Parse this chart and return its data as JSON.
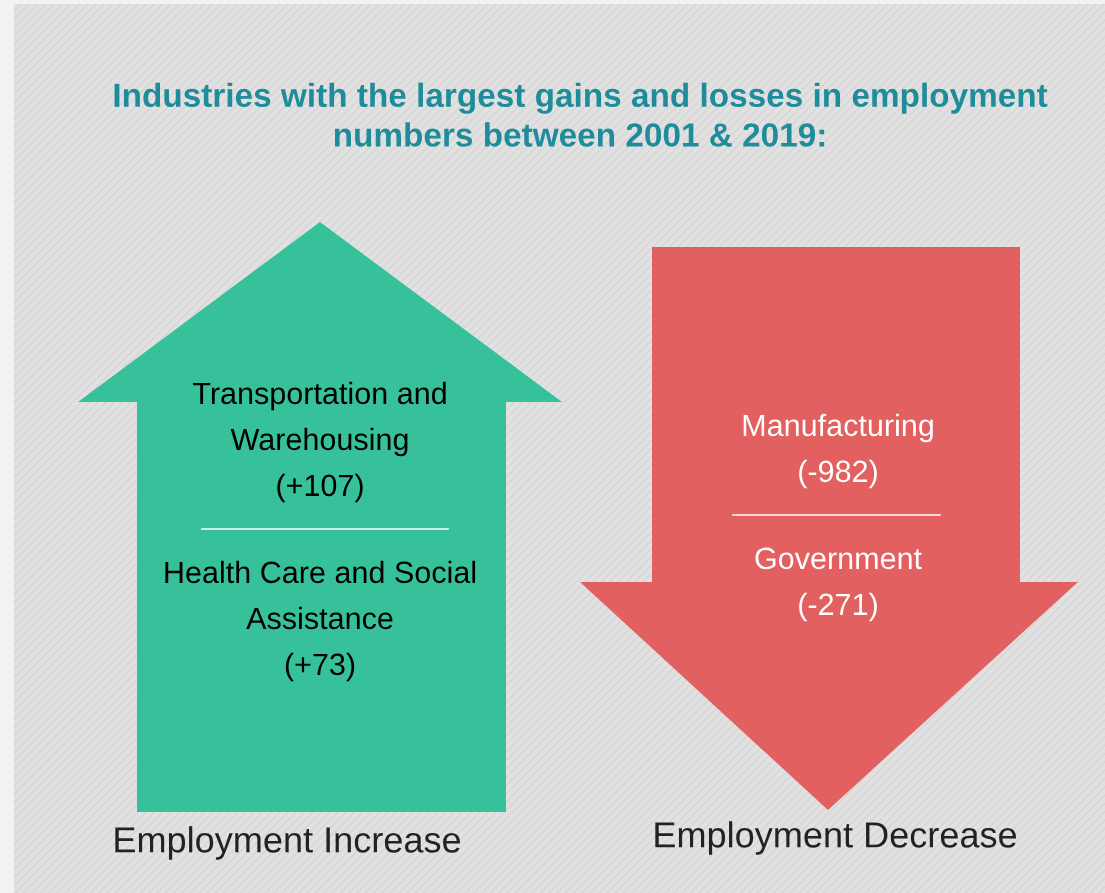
{
  "chart_data": {
    "type": "other",
    "title": "Industries with the largest gains and losses in employment numbers between 2001 & 2019:",
    "categories": [
      "Transportation and\nWarehousing",
      "Health Care and Social\nAssistance",
      "Manufacturing",
      "Government"
    ],
    "values": [
      107,
      73,
      -982,
      -271
    ],
    "value_labels": [
      "(+107)",
      "(+73)",
      "(-982)",
      "(-271)"
    ],
    "colors": [
      "#36c19a",
      "#36c19a",
      "#e36060",
      "#e36060"
    ],
    "annotations": [
      "Employment Increase",
      "Employment Decrease"
    ]
  }
}
